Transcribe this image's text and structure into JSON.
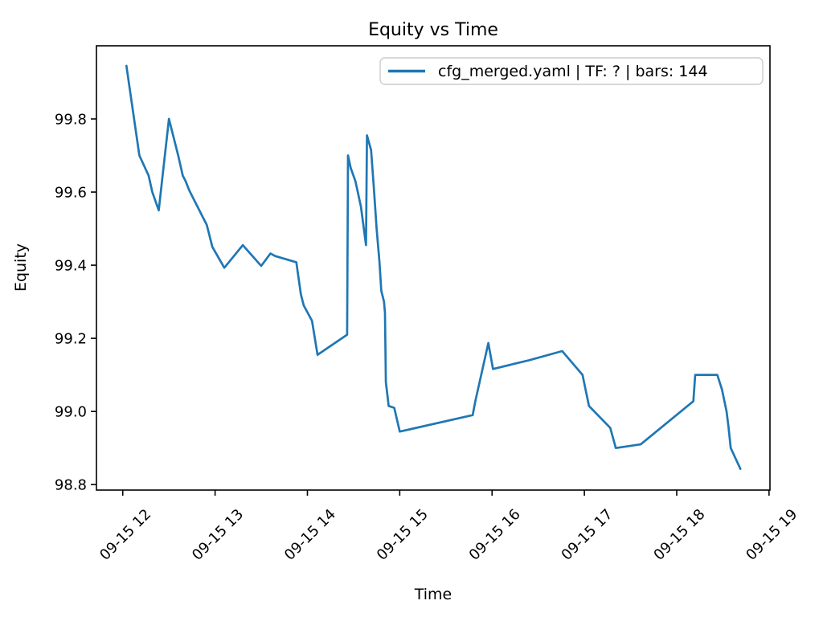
{
  "figure": {
    "title": "Equity vs Time",
    "xlabel": "Time",
    "ylabel": "Equity",
    "legend": {
      "label": "cfg_merged.yaml | TF: ? | bars: 144"
    }
  },
  "colors": {
    "line": "#1f77b4",
    "legend_border": "#cccccc",
    "text": "#000000",
    "background": "#ffffff",
    "spine": "#000000"
  },
  "chart_data": {
    "type": "line",
    "title": "Equity vs Time",
    "xlabel": "Time",
    "ylabel": "Equity",
    "grid": false,
    "legend_position": "upper right",
    "series": [
      {
        "name": "cfg_merged.yaml | TF: ? | bars: 144",
        "color": "#1f77b4",
        "x_unit": "decimal hours on 09-15",
        "points": [
          [
            12.04,
            99.945
          ],
          [
            12.18,
            99.7
          ],
          [
            12.28,
            99.645
          ],
          [
            12.32,
            99.6
          ],
          [
            12.39,
            99.55
          ],
          [
            12.5,
            99.8
          ],
          [
            12.54,
            99.76
          ],
          [
            12.6,
            99.7
          ],
          [
            12.65,
            99.645
          ],
          [
            12.68,
            99.63
          ],
          [
            12.72,
            99.605
          ],
          [
            12.8,
            99.565
          ],
          [
            12.91,
            99.51
          ],
          [
            12.97,
            99.45
          ],
          [
            13.1,
            99.393
          ],
          [
            13.3,
            99.455
          ],
          [
            13.5,
            99.398
          ],
          [
            13.6,
            99.432
          ],
          [
            13.65,
            99.425
          ],
          [
            13.88,
            99.408
          ],
          [
            13.93,
            99.32
          ],
          [
            13.96,
            99.29
          ],
          [
            14.05,
            99.248
          ],
          [
            14.11,
            99.155
          ],
          [
            14.43,
            99.21
          ],
          [
            14.44,
            99.7
          ],
          [
            14.47,
            99.665
          ],
          [
            14.52,
            99.63
          ],
          [
            14.58,
            99.56
          ],
          [
            14.635,
            99.455
          ],
          [
            14.645,
            99.755
          ],
          [
            14.69,
            99.715
          ],
          [
            14.72,
            99.61
          ],
          [
            14.75,
            99.5
          ],
          [
            14.78,
            99.41
          ],
          [
            14.8,
            99.33
          ],
          [
            14.83,
            99.3
          ],
          [
            14.84,
            99.27
          ],
          [
            14.85,
            99.08
          ],
          [
            14.88,
            99.015
          ],
          [
            14.94,
            99.01
          ],
          [
            15.0,
            98.945
          ],
          [
            15.79,
            98.99
          ],
          [
            15.82,
            99.03
          ],
          [
            15.96,
            99.187
          ],
          [
            16.01,
            99.116
          ],
          [
            16.4,
            99.14
          ],
          [
            16.76,
            99.165
          ],
          [
            16.98,
            99.1
          ],
          [
            17.05,
            99.015
          ],
          [
            17.28,
            98.955
          ],
          [
            17.34,
            98.9
          ],
          [
            17.61,
            98.91
          ],
          [
            18.18,
            99.028
          ],
          [
            18.2,
            99.1
          ],
          [
            18.44,
            99.1
          ],
          [
            18.49,
            99.06
          ],
          [
            18.54,
            99.0
          ],
          [
            18.56,
            98.96
          ],
          [
            18.585,
            98.9
          ],
          [
            18.69,
            98.843
          ]
        ]
      }
    ],
    "x_ticks_hours": [
      12,
      13,
      14,
      15,
      16,
      17,
      18,
      19
    ],
    "x_tick_labels": [
      "09-15 12",
      "09-15 13",
      "09-15 14",
      "09-15 15",
      "09-15 16",
      "09-15 17",
      "09-15 18",
      "09-15 19"
    ],
    "y_ticks": [
      98.8,
      99.0,
      99.2,
      99.4,
      99.6,
      99.8
    ],
    "y_tick_labels": [
      "98.8",
      "99.0",
      "99.2",
      "99.4",
      "99.6",
      "99.8"
    ],
    "xlim_hours": [
      11.715,
      19.01
    ],
    "ylim": [
      98.785,
      100.0
    ]
  }
}
